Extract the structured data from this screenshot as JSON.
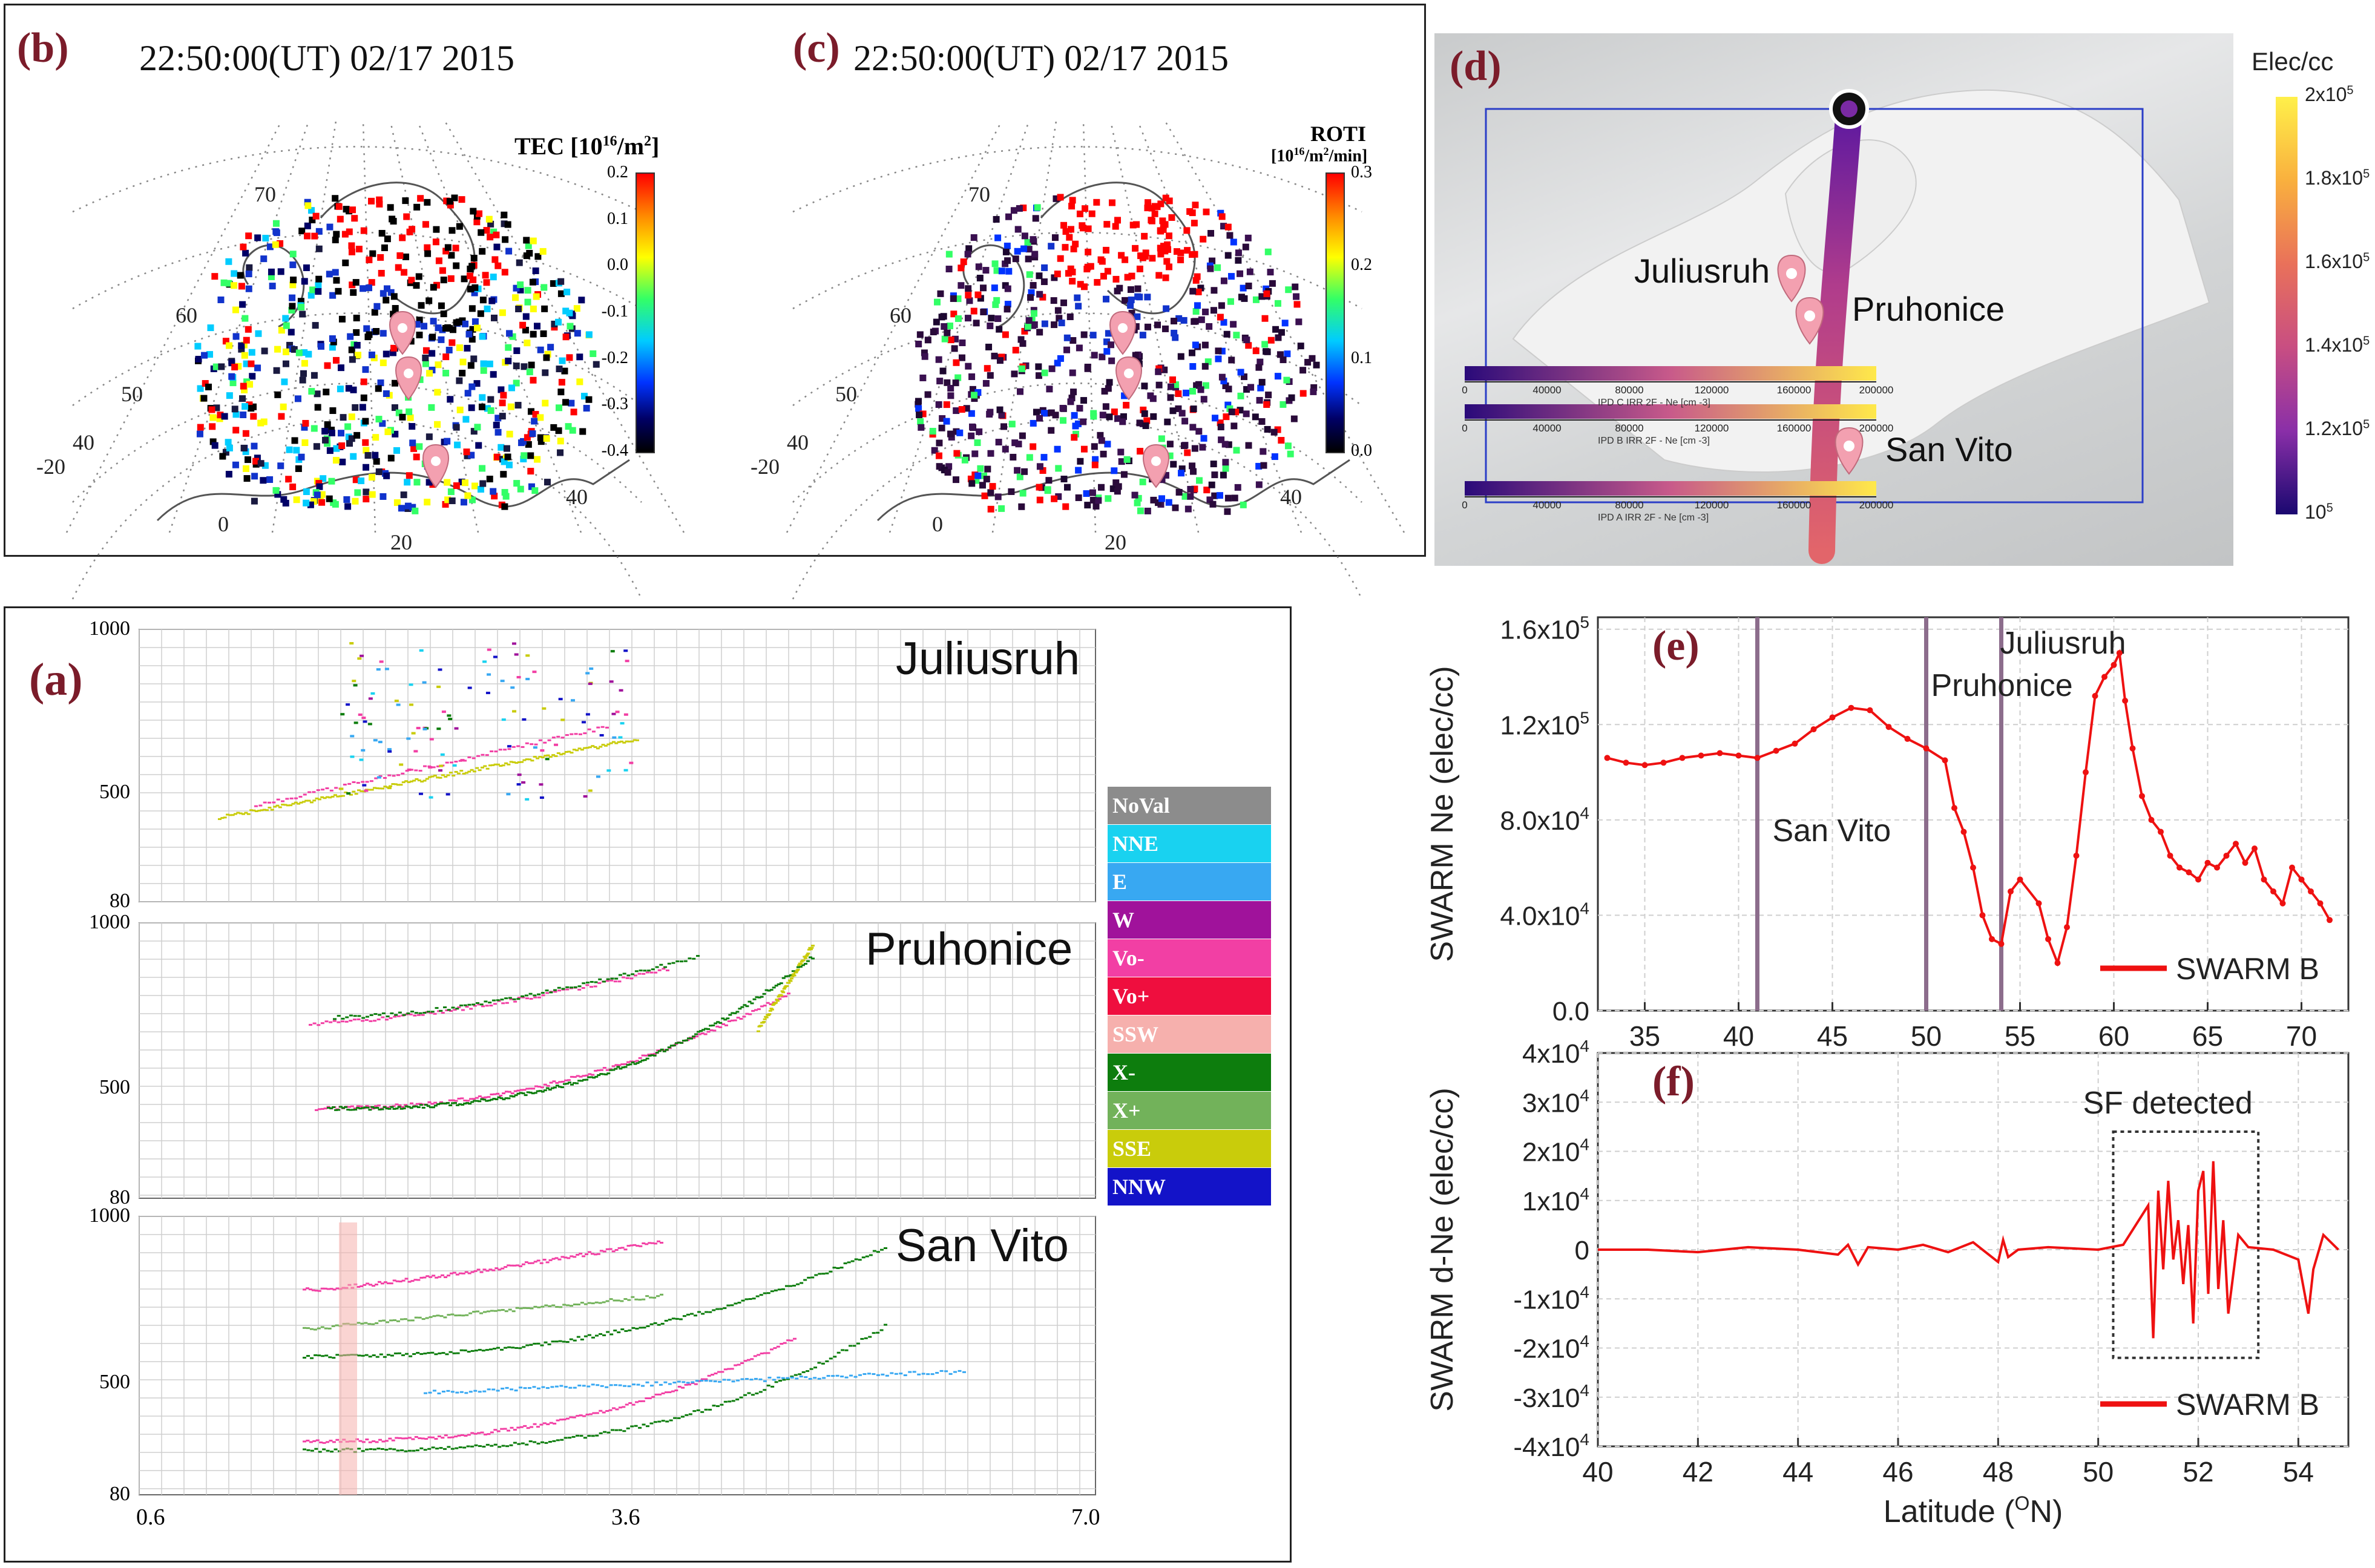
{
  "panels": {
    "b": {
      "label": "(b)",
      "title": "22:50:00(UT)  02/17 2015",
      "colorbar": {
        "title": "TEC [10",
        "title_sup": "16",
        "title_tail": "/m",
        "title_sup2": "2",
        "title_end": "]",
        "ticks": [
          "0.2",
          "0.1",
          "0.0",
          "-0.1",
          "-0.2",
          "-0.3",
          "-0.4"
        ],
        "colors": [
          "#ff0000",
          "#ff9900",
          "#ffff00",
          "#00ff66",
          "#00ccff",
          "#0033ff",
          "#000066",
          "#000000"
        ]
      },
      "lat_labels": [
        "70",
        "60",
        "50",
        "40"
      ],
      "lon_labels": [
        "-20",
        "0",
        "20",
        "40"
      ]
    },
    "c": {
      "label": "(c)",
      "title": "22:50:00(UT)  02/17 2015",
      "colorbar": {
        "title": "ROTI",
        "subtitle": "[10",
        "subtitle_sup": "16",
        "subtitle_mid": "/m",
        "subtitle_sup2": "2",
        "subtitle_end": "/min]",
        "ticks": [
          "0.3",
          "0.2",
          "0.1",
          "0.0"
        ]
      },
      "lat_labels": [
        "70",
        "60",
        "50",
        "40"
      ],
      "lon_labels": [
        "-20",
        "0",
        "20",
        "40"
      ]
    },
    "d": {
      "label": "(d)",
      "stations": [
        "Juliusruh",
        "Pruhonice",
        "San Vito"
      ],
      "mini_axes": [
        {
          "ticks": [
            "0",
            "40000",
            "80000",
            "120000",
            "160000",
            "200000"
          ],
          "caption": "IPD C IRR 2F - Ne [cm -3]"
        },
        {
          "ticks": [
            "0",
            "40000",
            "80000",
            "120000",
            "160000",
            "200000"
          ],
          "caption": "IPD B IRR 2F - Ne [cm -3]"
        },
        {
          "ticks": [
            "0",
            "40000",
            "80000",
            "120000",
            "160000",
            "200000"
          ],
          "caption": "IPD A IRR 2F - Ne [cm -3]"
        }
      ],
      "colorbar": {
        "title": "Elec/cc",
        "ticks": [
          {
            "base": "2x10",
            "exp": "5"
          },
          {
            "base": "1.8x10",
            "exp": "5"
          },
          {
            "base": "1.6x10",
            "exp": "5"
          },
          {
            "base": "1.4x10",
            "exp": "5"
          },
          {
            "base": "1.2x10",
            "exp": "5"
          },
          {
            "base": "10",
            "exp": "5"
          }
        ]
      }
    },
    "a": {
      "label": "(a)",
      "stations": [
        "Juliusruh",
        "Pruhonice",
        "San Vito"
      ],
      "y_ticks": [
        "1000",
        "500",
        "80"
      ],
      "x_ticks": [
        "0.6",
        "3.6",
        "7.0"
      ],
      "legend": [
        {
          "label": "NoVal",
          "color": "#8c8c8c"
        },
        {
          "label": "NNE",
          "color": "#19d2f0"
        },
        {
          "label": "E",
          "color": "#38a8f2"
        },
        {
          "label": "W",
          "color": "#a0129b"
        },
        {
          "label": "Vo-",
          "color": "#f23fa4"
        },
        {
          "label": "Vo+",
          "color": "#ef0e3e"
        },
        {
          "label": "SSW",
          "color": "#f6b0ad"
        },
        {
          "label": "X-",
          "color": "#0d7d0d"
        },
        {
          "label": "X+",
          "color": "#72b25a"
        },
        {
          "label": "SSE",
          "color": "#c9cc0b"
        },
        {
          "label": "NNW",
          "color": "#1313c8"
        }
      ]
    }
  },
  "chart_data": [
    {
      "id": "e",
      "type": "line",
      "label": "(e)",
      "ylabel": "SWARM Ne (elec/cc)",
      "xlabel": "",
      "xlim": [
        32.5,
        72.5
      ],
      "ylim": [
        0,
        165000
      ],
      "x_ticks": [
        35,
        40,
        45,
        50,
        55,
        60,
        65,
        70
      ],
      "y_ticks": [
        {
          "value": 0,
          "base": "0.0",
          "exp": ""
        },
        {
          "value": 40000,
          "base": "4.0x10",
          "exp": "4"
        },
        {
          "value": 80000,
          "base": "8.0x10",
          "exp": "4"
        },
        {
          "value": 120000,
          "base": "1.2x10",
          "exp": "5"
        },
        {
          "value": 160000,
          "base": "1.6x10",
          "exp": "5"
        }
      ],
      "station_lines": [
        {
          "x": 41,
          "name": "San Vito"
        },
        {
          "x": 50,
          "name": "Pruhonice"
        },
        {
          "x": 54,
          "name": "Juliusruh"
        }
      ],
      "legend": "SWARM B",
      "series": [
        {
          "name": "SWARM B",
          "color": "#ee1111",
          "x": [
            33,
            34,
            35,
            36,
            37,
            38,
            39,
            40,
            41,
            42,
            43,
            44,
            45,
            46,
            47,
            48,
            49,
            50,
            51,
            51.5,
            52,
            52.5,
            53,
            53.5,
            54,
            54.5,
            55,
            56,
            56.5,
            57,
            57.5,
            58,
            58.5,
            59,
            59.5,
            60,
            60.3,
            60.6,
            61,
            61.5,
            62,
            62.5,
            63,
            63.5,
            64,
            64.5,
            65,
            65.5,
            66,
            66.5,
            67,
            67.5,
            68,
            68.5,
            69,
            69.5,
            70,
            70.5,
            71,
            71.5
          ],
          "y": [
            106000,
            104000,
            103000,
            104000,
            106000,
            107000,
            108000,
            107000,
            106000,
            109000,
            112000,
            118000,
            123000,
            127000,
            126000,
            119000,
            114000,
            110000,
            105000,
            85000,
            75000,
            60000,
            40000,
            30000,
            28000,
            50000,
            55000,
            45000,
            30000,
            20000,
            35000,
            65000,
            100000,
            132000,
            140000,
            145000,
            150000,
            130000,
            110000,
            90000,
            80000,
            75000,
            65000,
            60000,
            58000,
            55000,
            62000,
            60000,
            65000,
            70000,
            62000,
            68000,
            55000,
            50000,
            45000,
            60000,
            55000,
            50000,
            45000,
            38000
          ]
        }
      ]
    },
    {
      "id": "f",
      "type": "line",
      "label": "(f)",
      "ylabel": "SWARM d-Ne (elec/cc)",
      "xlabel": "Latitude (",
      "xlabel_sup": "O",
      "xlabel_end": "N)",
      "xlim": [
        40,
        55
      ],
      "ylim": [
        -40000,
        40000
      ],
      "x_ticks": [
        40,
        42,
        44,
        46,
        48,
        50,
        52,
        54
      ],
      "y_ticks": [
        {
          "value": 40000,
          "base": "4x10",
          "exp": "4"
        },
        {
          "value": 30000,
          "base": "3x10",
          "exp": "4"
        },
        {
          "value": 20000,
          "base": "2x10",
          "exp": "4"
        },
        {
          "value": 10000,
          "base": "1x10",
          "exp": "4"
        },
        {
          "value": 0,
          "base": "0",
          "exp": ""
        },
        {
          "value": -10000,
          "base": "-1x10",
          "exp": "4"
        },
        {
          "value": -20000,
          "base": "-2x10",
          "exp": "4"
        },
        {
          "value": -30000,
          "base": "-3x10",
          "exp": "4"
        },
        {
          "value": -40000,
          "base": "-4x10",
          "exp": "4"
        }
      ],
      "annotation": "SF detected",
      "annotation_box": {
        "x0": 50.3,
        "x1": 53.2,
        "y0": -22000,
        "y1": 24000
      },
      "legend": "SWARM B",
      "series": [
        {
          "name": "SWARM B",
          "color": "#ee1111",
          "x": [
            40,
            41,
            42,
            43,
            44,
            44.8,
            45,
            45.2,
            45.4,
            46,
            46.5,
            47,
            47.5,
            48,
            48.1,
            48.2,
            48.4,
            49,
            50,
            50.5,
            51,
            51.1,
            51.2,
            51.3,
            51.4,
            51.5,
            51.6,
            51.7,
            51.8,
            51.9,
            52,
            52.1,
            52.2,
            52.3,
            52.4,
            52.5,
            52.6,
            52.8,
            53,
            53.5,
            54,
            54.2,
            54.3,
            54.5,
            54.8
          ],
          "y": [
            0,
            0,
            -500,
            500,
            0,
            -1000,
            1000,
            -3000,
            500,
            0,
            1000,
            -500,
            1500,
            -2500,
            2000,
            -1500,
            0,
            500,
            0,
            1000,
            9000,
            -18000,
            12000,
            -4000,
            14000,
            -2000,
            6000,
            -7000,
            5000,
            -15000,
            12000,
            16000,
            -9000,
            18000,
            -8000,
            6000,
            -13000,
            3000,
            500,
            0,
            -2000,
            -13000,
            -4000,
            3000,
            0
          ]
        }
      ]
    }
  ]
}
